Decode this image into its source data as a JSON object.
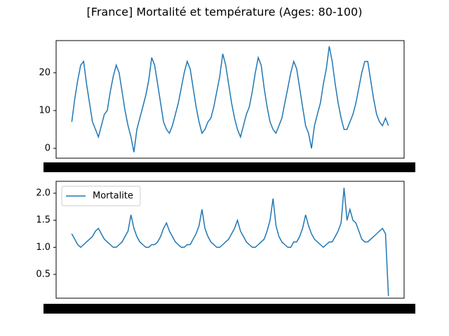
{
  "title": "[France] Mortalité et température (Ages: 80-100)",
  "chart_data": [
    {
      "type": "line",
      "series": [
        {
          "color": "#1f77b4",
          "values": [
            7,
            13,
            18,
            22,
            23,
            17,
            12,
            7,
            5,
            3,
            6,
            9,
            10,
            15,
            19,
            22,
            20,
            15,
            10,
            6,
            3,
            -1,
            5,
            8,
            11,
            14,
            18,
            24,
            22,
            17,
            12,
            7,
            5,
            4,
            6,
            9,
            12,
            16,
            20,
            23,
            21,
            16,
            11,
            7,
            4,
            5,
            7,
            8,
            11,
            15,
            19,
            25,
            22,
            17,
            12,
            8,
            5,
            3,
            6,
            9,
            11,
            15,
            20,
            24,
            22,
            16,
            11,
            7,
            5,
            4,
            6,
            8,
            12,
            16,
            20,
            23,
            21,
            16,
            11,
            6,
            4,
            0,
            6,
            9,
            12,
            17,
            21,
            27,
            23,
            17,
            12,
            8,
            5,
            5,
            7,
            9,
            12,
            16,
            20,
            23,
            23,
            18,
            13,
            9,
            7,
            6,
            8,
            6
          ]
        }
      ],
      "ylim": [
        -2.6,
        28.5
      ],
      "yticks": [
        0,
        10,
        20
      ]
    },
    {
      "type": "line",
      "series": [
        {
          "name": "Mortalite",
          "color": "#1f77b4",
          "values": [
            1.25,
            1.15,
            1.05,
            1.0,
            1.05,
            1.1,
            1.15,
            1.2,
            1.3,
            1.35,
            1.25,
            1.15,
            1.1,
            1.05,
            1.0,
            1.0,
            1.05,
            1.1,
            1.2,
            1.3,
            1.6,
            1.35,
            1.2,
            1.1,
            1.05,
            1.0,
            1.0,
            1.05,
            1.05,
            1.1,
            1.2,
            1.35,
            1.45,
            1.3,
            1.2,
            1.1,
            1.05,
            1.0,
            1.0,
            1.05,
            1.05,
            1.15,
            1.25,
            1.4,
            1.7,
            1.35,
            1.2,
            1.1,
            1.05,
            1.0,
            1.0,
            1.05,
            1.1,
            1.15,
            1.25,
            1.35,
            1.5,
            1.3,
            1.2,
            1.1,
            1.05,
            1.0,
            1.0,
            1.05,
            1.1,
            1.15,
            1.3,
            1.5,
            1.9,
            1.4,
            1.2,
            1.1,
            1.05,
            1.0,
            1.0,
            1.1,
            1.1,
            1.2,
            1.35,
            1.6,
            1.4,
            1.25,
            1.15,
            1.1,
            1.05,
            1.0,
            1.05,
            1.1,
            1.1,
            1.2,
            1.3,
            1.45,
            2.1,
            1.5,
            1.7,
            1.5,
            1.45,
            1.3,
            1.15,
            1.1,
            1.1,
            1.15,
            1.2,
            1.25,
            1.3,
            1.35,
            1.25,
            0.1
          ]
        }
      ],
      "ylim": [
        0.06,
        2.22
      ],
      "yticks": [
        {
          "value": 0.5,
          "label": "0.5"
        },
        {
          "value": 1.0,
          "label": "1.0"
        },
        {
          "value": 1.5,
          "label": "1.5"
        },
        {
          "value": 2.0,
          "label": "2.0"
        }
      ],
      "legend": "upper left"
    }
  ]
}
